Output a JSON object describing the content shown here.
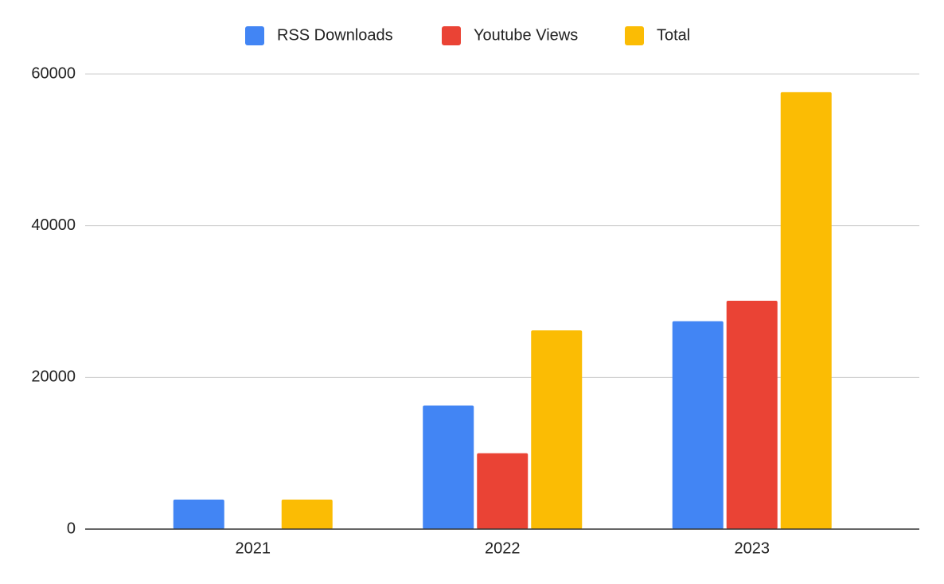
{
  "chart_data": {
    "type": "bar",
    "categories": [
      "2021",
      "2022",
      "2023"
    ],
    "series": [
      {
        "name": "RSS Downloads",
        "color": "#4285f4",
        "values": [
          3900,
          16300,
          27400
        ]
      },
      {
        "name": "Youtube Views",
        "color": "#ea4335",
        "values": [
          0,
          10000,
          30100
        ]
      },
      {
        "name": "Total",
        "color": "#fbbc04",
        "values": [
          3900,
          26200,
          57600
        ]
      }
    ],
    "ylim": [
      0,
      60000
    ],
    "yticks": [
      0,
      20000,
      40000,
      60000
    ],
    "grid": true,
    "legend": "top"
  }
}
